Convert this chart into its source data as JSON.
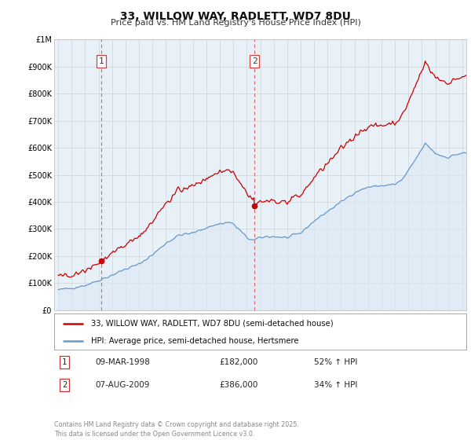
{
  "title": "33, WILLOW WAY, RADLETT, WD7 8DU",
  "subtitle": "Price paid vs. HM Land Registry's House Price Index (HPI)",
  "legend_line1": "33, WILLOW WAY, RADLETT, WD7 8DU (semi-detached house)",
  "legend_line2": "HPI: Average price, semi-detached house, Hertsmere",
  "footer": "Contains HM Land Registry data © Crown copyright and database right 2025.\nThis data is licensed under the Open Government Licence v3.0.",
  "table": [
    {
      "num": 1,
      "date": "09-MAR-1998",
      "price": "£182,000",
      "hpi": "52% ↑ HPI"
    },
    {
      "num": 2,
      "date": "07-AUG-2009",
      "price": "£386,000",
      "hpi": "34% ↑ HPI"
    }
  ],
  "vline1_year": 1998.18,
  "vline2_year": 2009.58,
  "marker1_price": 182000,
  "marker2_price": 386000,
  "red_color": "#cc0000",
  "blue_color": "#6699cc",
  "vline_color": "#dd6666",
  "grid_color": "#cccccc",
  "bg_color": "#ffffff",
  "chart_bg": "#e8f0f8",
  "ylim_min": 0,
  "ylim_max": 1000000,
  "xmin": 1994.7,
  "xmax": 2025.3
}
